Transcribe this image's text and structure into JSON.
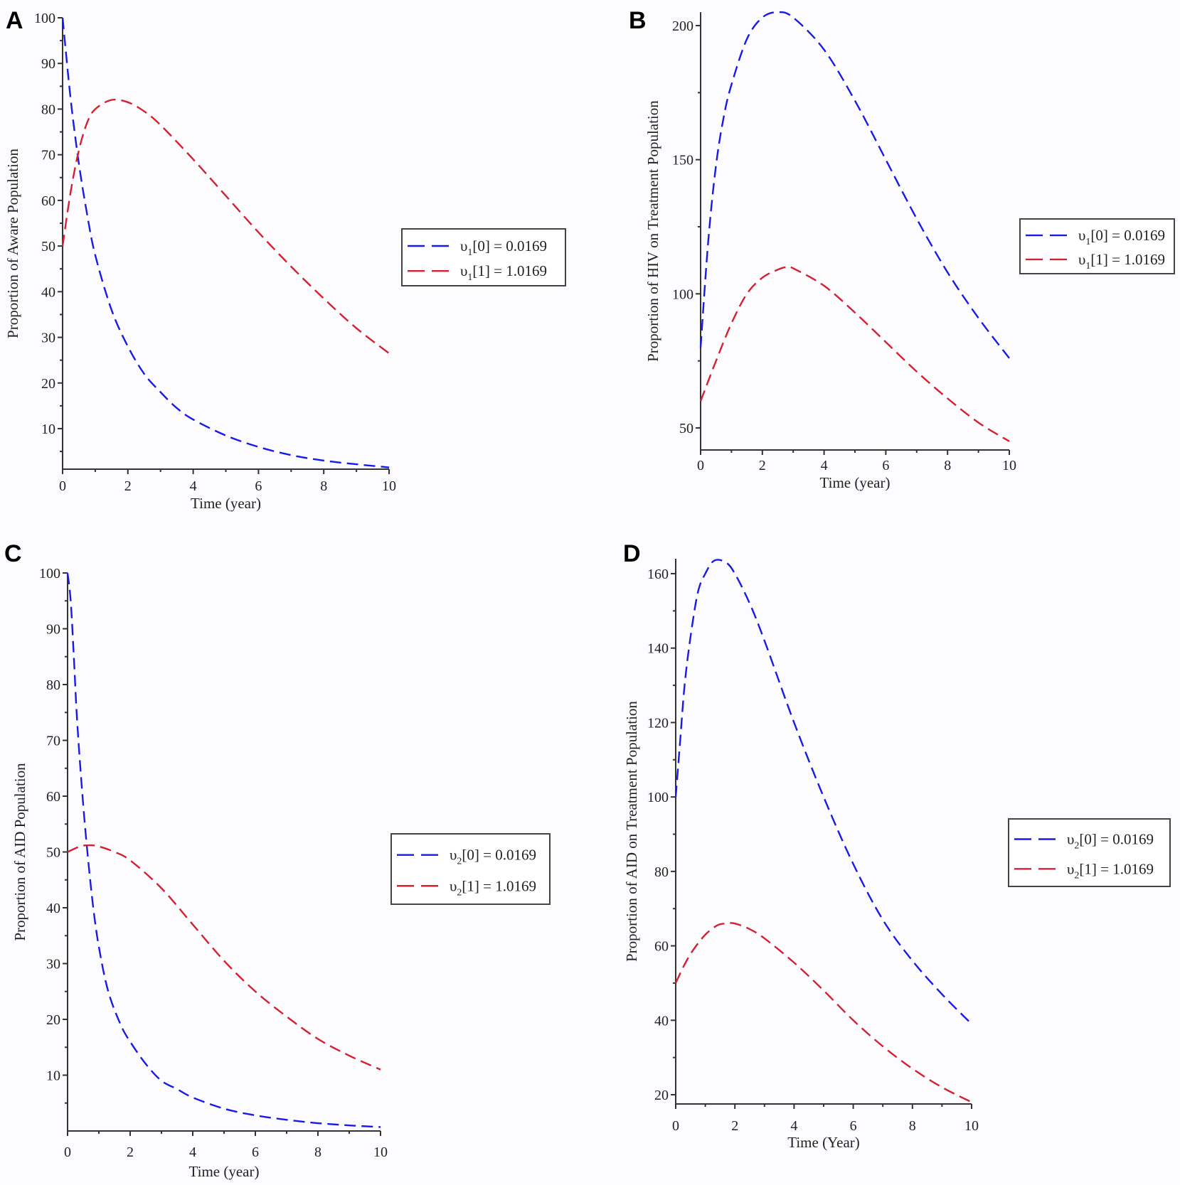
{
  "chart_data": [
    {
      "id": "A",
      "type": "line",
      "panel_label": "A",
      "title": "",
      "xlabel": "Time (year)",
      "ylabel": "Proportion of Aware Population",
      "xlim": [
        0,
        10
      ],
      "ylim": [
        0,
        100
      ],
      "xticks": [
        0,
        2,
        4,
        6,
        8,
        10
      ],
      "yticks": [
        10,
        20,
        30,
        40,
        50,
        60,
        70,
        80,
        90,
        100
      ],
      "grid": false,
      "legend_position": "right",
      "legend": [
        {
          "label_base": "υ",
          "label_sub": "1",
          "label_rest": "[0] = 0.0169",
          "color": "#1a1ae6"
        },
        {
          "label_base": "υ",
          "label_sub": "1",
          "label_rest": "[1] = 1.0169",
          "color": "#d42030"
        }
      ],
      "series": [
        {
          "name": "υ1[0] = 0.0169",
          "color": "#1a1ae6",
          "x": [
            0,
            0.25,
            0.5,
            0.75,
            1,
            1.5,
            2,
            2.5,
            3,
            3.5,
            4,
            5,
            6,
            7,
            8,
            9,
            10
          ],
          "y": [
            100,
            82,
            68,
            57,
            48,
            36,
            28,
            22,
            18,
            14.5,
            12,
            8.5,
            6,
            4.2,
            3,
            2.2,
            1.5
          ]
        },
        {
          "name": "υ1[1] = 1.0169",
          "color": "#d42030",
          "x": [
            0,
            0.25,
            0.5,
            0.75,
            1,
            1.5,
            2,
            2.5,
            3,
            4,
            5,
            6,
            7,
            8,
            9,
            10
          ],
          "y": [
            50,
            62,
            71,
            77,
            80,
            82,
            81.5,
            79.5,
            76.5,
            69,
            61,
            53,
            45.5,
            38.5,
            32,
            26.5
          ]
        }
      ]
    },
    {
      "id": "B",
      "type": "line",
      "panel_label": "B",
      "title": "",
      "xlabel": "Time (year)",
      "ylabel": "Proportion of HIV on Treatment Population",
      "xlim": [
        0,
        10
      ],
      "ylim": [
        42,
        205
      ],
      "xticks": [
        0,
        2,
        4,
        6,
        8,
        10
      ],
      "yticks": [
        50,
        100,
        150,
        200
      ],
      "grid": false,
      "legend_position": "right",
      "legend": [
        {
          "label_base": "υ",
          "label_sub": "1",
          "label_rest": "[0] = 0.0169",
          "color": "#1a1ae6"
        },
        {
          "label_base": "υ",
          "label_sub": "1",
          "label_rest": "[1] = 1.0169",
          "color": "#d42030"
        }
      ],
      "series": [
        {
          "name": "υ1[0] = 0.0169",
          "color": "#1a1ae6",
          "x": [
            0,
            0.25,
            0.5,
            0.75,
            1,
            1.5,
            2,
            2.5,
            3,
            4,
            5,
            6,
            7,
            8,
            9,
            10
          ],
          "y": [
            80,
            120,
            148,
            166,
            178,
            195,
            203,
            205,
            203,
            191,
            172,
            150,
            128,
            108,
            91,
            76
          ]
        },
        {
          "name": "υ1[1] = 1.0169",
          "color": "#d42030",
          "x": [
            0,
            0.5,
            1,
            1.5,
            2,
            2.5,
            2.8,
            3,
            4,
            5,
            6,
            7,
            8,
            9,
            10
          ],
          "y": [
            60,
            75,
            89,
            100,
            106,
            109,
            110,
            109.5,
            103,
            93,
            82,
            71,
            61,
            52,
            45
          ]
        }
      ]
    },
    {
      "id": "C",
      "type": "line",
      "panel_label": "C",
      "title": "",
      "xlabel": "Time (year)",
      "ylabel": "Proportion of AID Population",
      "xlim": [
        0,
        10
      ],
      "ylim": [
        0,
        100
      ],
      "xticks": [
        0,
        2,
        4,
        6,
        8,
        10
      ],
      "yticks": [
        10,
        20,
        30,
        40,
        50,
        60,
        70,
        80,
        90,
        100
      ],
      "grid": false,
      "legend_position": "right",
      "legend": [
        {
          "label_base": "υ",
          "label_sub": "2",
          "label_rest": "[0] = 0.0169",
          "color": "#1a1ae6"
        },
        {
          "label_base": "υ",
          "label_sub": "2",
          "label_rest": "[1] = 1.0169",
          "color": "#d42030"
        }
      ],
      "series": [
        {
          "name": "υ2[0] = 0.0169",
          "color": "#1a1ae6",
          "x": [
            0,
            0.1,
            0.2,
            0.3,
            0.45,
            0.6,
            0.8,
            1,
            1.3,
            1.7,
            2,
            2.5,
            3,
            3.5,
            4,
            5,
            6,
            7,
            8,
            9,
            10
          ],
          "y": [
            100,
            95,
            85,
            74,
            62,
            52,
            41,
            33,
            25,
            19,
            16,
            12,
            9,
            7.5,
            6,
            4,
            2.8,
            2,
            1.4,
            1,
            0.7
          ]
        },
        {
          "name": "υ2[1] = 1.0169",
          "color": "#d42030",
          "x": [
            0,
            0.4,
            0.7,
            1,
            1.5,
            2,
            3,
            4,
            5,
            6,
            7,
            8,
            9,
            10
          ],
          "y": [
            50,
            51,
            51.2,
            51,
            50,
            48.5,
            43.5,
            37,
            30.5,
            25,
            20.5,
            16.5,
            13.5,
            11
          ]
        }
      ]
    },
    {
      "id": "D",
      "type": "line",
      "panel_label": "D",
      "title": "",
      "xlabel": "Time (Year)",
      "ylabel": "Proportion of AID on Treatment Population",
      "xlim": [
        0,
        10
      ],
      "ylim": [
        17.5,
        164
      ],
      "xticks": [
        0,
        2,
        4,
        6,
        8,
        10
      ],
      "yticks": [
        20,
        40,
        60,
        80,
        100,
        120,
        140,
        160
      ],
      "grid": false,
      "legend_position": "right",
      "legend": [
        {
          "label_base": "υ",
          "label_sub": "2",
          "label_rest": "[0] = 0.0169",
          "color": "#1a1ae6"
        },
        {
          "label_base": "υ",
          "label_sub": "2",
          "label_rest": "[1] = 1.0169",
          "color": "#d42030"
        }
      ],
      "series": [
        {
          "name": "υ2[0] = 0.0169",
          "color": "#1a1ae6",
          "x": [
            0,
            0.15,
            0.3,
            0.5,
            0.75,
            1,
            1.3,
            1.7,
            2,
            2.5,
            3,
            4,
            5,
            6,
            7,
            8,
            9,
            10
          ],
          "y": [
            100,
            115,
            130,
            143,
            155,
            160,
            163.5,
            163,
            160,
            152,
            142,
            120,
            100,
            82,
            67,
            56,
            47,
            39
          ]
        },
        {
          "name": "υ2[1] = 1.0169",
          "color": "#d42030",
          "x": [
            0,
            0.3,
            0.6,
            1,
            1.4,
            1.7,
            2,
            2.5,
            3,
            4,
            5,
            6,
            7,
            8,
            9,
            10
          ],
          "y": [
            50,
            55,
            59,
            63,
            65.5,
            66,
            66,
            64.5,
            62,
            55.5,
            48,
            40,
            33,
            27,
            22,
            18
          ]
        }
      ]
    }
  ]
}
